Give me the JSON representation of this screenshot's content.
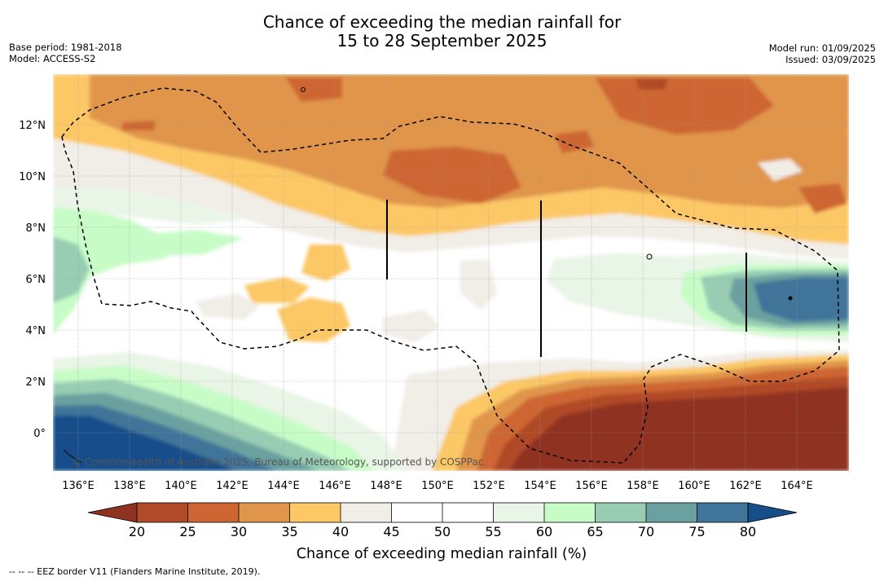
{
  "title": {
    "line1": "Chance of exceeding the median rainfall for",
    "line2": "15 to 28 September 2025"
  },
  "meta_left": {
    "base_period": "Base period: 1981-2018",
    "model": "Model: ACCESS-S2"
  },
  "meta_right": {
    "model_run": "Model run: 01/09/2025",
    "issued": "Issued: 03/09/2025"
  },
  "map": {
    "lon_range": [
      135,
      166
    ],
    "lat_range": [
      -1.5,
      14
    ],
    "lon_ticks": [
      "136°E",
      "138°E",
      "140°E",
      "142°E",
      "144°E",
      "146°E",
      "148°E",
      "150°E",
      "152°E",
      "154°E",
      "156°E",
      "158°E",
      "160°E",
      "162°E",
      "164°E"
    ],
    "lat_ticks": [
      "0°",
      "2°N",
      "4°N",
      "6°N",
      "8°N",
      "10°N",
      "12°N"
    ],
    "copyright": "© Commonwealth of Australia 2025, Bureau of Meteorology, supported by COSPPac",
    "boundary_style": "dashed EEZ border"
  },
  "colorbar": {
    "title": "Chance of exceeding median rainfall (%)",
    "ticks": [
      "20",
      "25",
      "30",
      "35",
      "40",
      "45",
      "50",
      "55",
      "60",
      "65",
      "70",
      "75",
      "80"
    ],
    "colors": [
      "#8f3320",
      "#b04a28",
      "#cd6632",
      "#e0954c",
      "#fcc866",
      "#f1ede7",
      "#ffffff",
      "#ffffff",
      "#e9f5e6",
      "#c8fcc7",
      "#98cdb3",
      "#6aa1a0",
      "#3f7599",
      "#164e8a"
    ],
    "extends": "both"
  },
  "footnote": "--  --  -- EEZ border V11 (Flanders Marine Institute, 2019)."
}
